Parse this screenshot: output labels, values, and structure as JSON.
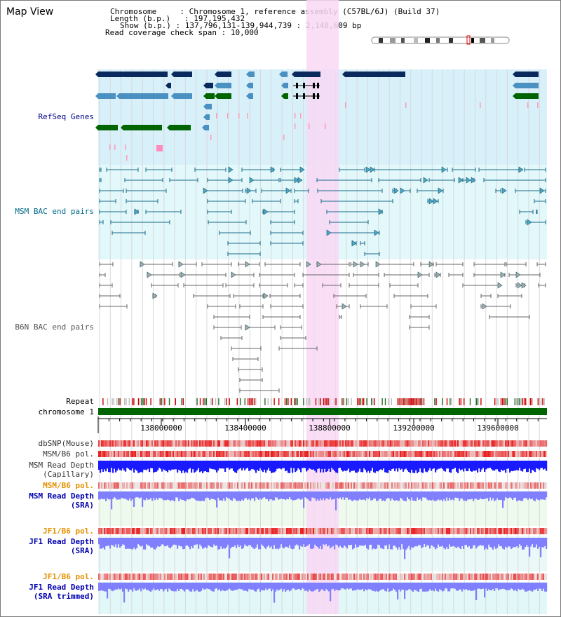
{
  "title": "Map View",
  "info": {
    "chromosome_label": "Chromosome",
    "chromosome_value": "Chromosome 1, reference assembly (C57BL/6J) (Build 37)",
    "length_label": "Length (b.p.)",
    "length_value": "197,195,432",
    "show_label": "Show (b.p.)",
    "show_value": "137,796,131-139,944,739 : 2,148,609 bp",
    "span_label": "Read coverage check span",
    "span_value": "10,000"
  },
  "tracks": {
    "refseq": {
      "label": "RefSeq Genes",
      "color": "#00008b"
    },
    "msm_bac": {
      "label": "MSM BAC end pairs",
      "color": "#006a8a"
    },
    "b6n_bac": {
      "label": "B6N BAC end pairs",
      "color": "#555555"
    },
    "repeat": {
      "label": "Repeat",
      "color": "#000000"
    },
    "chromosome": {
      "label": "chromosome 1",
      "color": "#000000"
    },
    "dbsnp": {
      "label": "dbSNP(Mouse)",
      "color": "#333333"
    },
    "msm_b6_pol_1": {
      "label": "MSM/B6 pol.",
      "color": "#333333"
    },
    "msm_depth_cap": {
      "label_1": "MSM Read Depth",
      "label_2": "(Capillary)",
      "color": "#333333"
    },
    "msm_b6_pol_2": {
      "label": "MSM/B6 pol.",
      "color": "#e69100"
    },
    "msm_depth_sra": {
      "label_1": "MSM Read Depth",
      "label_2": "(SRA)",
      "color": "#0000b0"
    },
    "jf1_b6_pol_1": {
      "label": "JF1/B6 pol.",
      "color": "#e69100"
    },
    "jf1_depth_sra": {
      "label_1": "JF1 Read Depth",
      "label_2": "(SRA)",
      "color": "#0000b0"
    },
    "jf1_b6_pol_2": {
      "label": "JF1/B6 pol.",
      "color": "#e69100"
    },
    "jf1_depth_trim": {
      "label_1": "JF1 Read Depth",
      "label_2": "(SRA trimmed)",
      "color": "#0000b0"
    }
  },
  "ruler": {
    "ticks": [
      "138000000",
      "138400000",
      "138800000",
      "139200000",
      "139600000"
    ]
  },
  "colors": {
    "highlight": "#f8d8f4",
    "refseq_bg": "#d8f0fa",
    "msm_bg": "#e2f8fa",
    "gene_dark": "#0a2a5e",
    "gene_light": "#4a90c0",
    "gene_green": "#006400",
    "chromosome_bar": "#006400",
    "depth_capillary": "#1a1aff",
    "depth_sra": "#8080ff",
    "pol_red": "#e03030"
  }
}
